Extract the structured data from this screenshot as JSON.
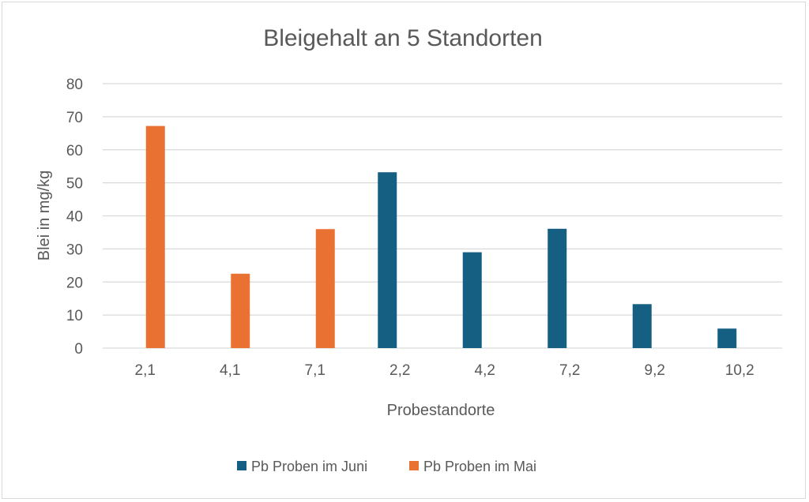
{
  "chart_data": {
    "type": "bar",
    "title": "Bleigehalt an 5 Standorten",
    "xlabel": "Probestandorte",
    "ylabel": "Blei in mg/kg",
    "ylim": [
      0,
      80
    ],
    "yticks": [
      0,
      10,
      20,
      30,
      40,
      50,
      60,
      70,
      80
    ],
    "grid": true,
    "legend_position": "bottom",
    "categories": [
      "2,1",
      "4,1",
      "7,1",
      "2,2",
      "4,2",
      "7,2",
      "9,2",
      "10,2"
    ],
    "series": [
      {
        "name": "Pb Proben im Juni",
        "color": "#156082",
        "values": [
          null,
          null,
          null,
          53.2,
          29.0,
          36.1,
          13.3,
          5.9
        ]
      },
      {
        "name": "Pb Proben im Mai",
        "color": "#E97132",
        "values": [
          67.2,
          22.5,
          36.0,
          null,
          null,
          null,
          null,
          null
        ]
      }
    ]
  }
}
